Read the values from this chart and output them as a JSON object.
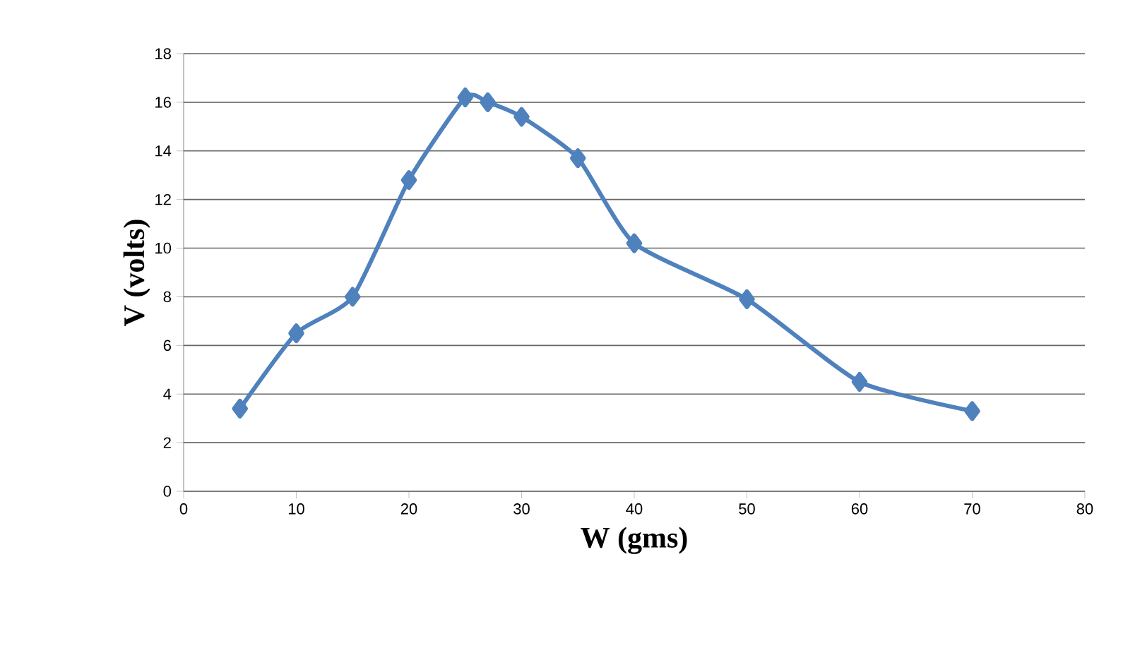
{
  "chart_data": {
    "type": "line",
    "xlabel": "W (gms)",
    "ylabel": "V (volts)",
    "x": [
      5,
      10,
      15,
      20,
      25,
      27,
      30,
      35,
      40,
      50,
      60,
      70
    ],
    "series": [
      {
        "color": "#4f81bd",
        "values": [
          3.4,
          6.5,
          8.0,
          12.8,
          16.2,
          16.0,
          15.4,
          13.7,
          10.2,
          7.9,
          4.5,
          3.3
        ]
      }
    ],
    "xlim": [
      0,
      80
    ],
    "xticks": [
      0,
      10,
      20,
      30,
      40,
      50,
      60,
      70,
      80
    ],
    "ylim": [
      0,
      18
    ],
    "yticks": [
      0,
      2,
      4,
      6,
      8,
      10,
      12,
      14,
      16,
      18
    ],
    "grid": "y",
    "marker": "diamond",
    "line_style": "solid"
  }
}
